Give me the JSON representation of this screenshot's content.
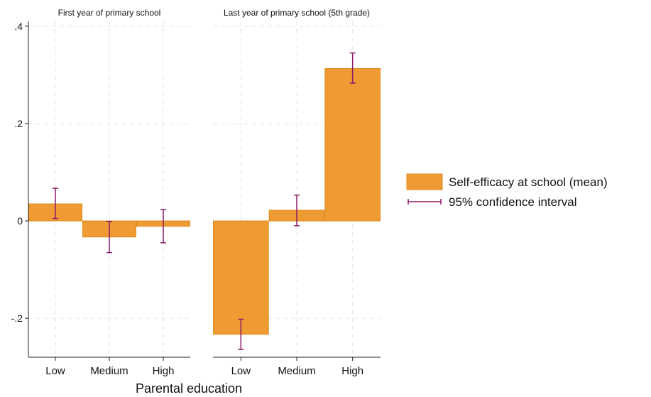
{
  "chart_data": {
    "type": "bar",
    "xlabel": "Parental education",
    "ylabel": "",
    "ylim": [
      -0.28,
      0.41
    ],
    "yticks": [
      {
        "value": 0.4,
        "label": ".4"
      },
      {
        "value": 0.2,
        "label": ".2"
      },
      {
        "value": 0,
        "label": "0"
      },
      {
        "value": -0.2,
        "label": "-.2"
      }
    ],
    "grid": true,
    "legend_position": "right",
    "legend": [
      {
        "label": "Self-efficacy at school (mean)",
        "kind": "bar"
      },
      {
        "label": "95% confidence interval",
        "kind": "errorbar"
      }
    ],
    "colors": {
      "bar": "#ee9b33",
      "bar_edge": "#e08a1e",
      "ci": "#8b1a6b",
      "grid": "#e6e6e6",
      "axis": "#222222"
    },
    "panels": [
      {
        "title": "First year of primary school",
        "categories": [
          "Low",
          "Medium",
          "High"
        ],
        "values": [
          0.035,
          -0.033,
          -0.011
        ],
        "ci_low": [
          0.005,
          -0.065,
          -0.045
        ],
        "ci_high": [
          0.067,
          -0.001,
          0.023
        ]
      },
      {
        "title": "Last year of primary school (5th grade)",
        "categories": [
          "Low",
          "Medium",
          "High"
        ],
        "values": [
          -0.233,
          0.022,
          0.313
        ],
        "ci_low": [
          -0.264,
          -0.01,
          0.283
        ],
        "ci_high": [
          -0.202,
          0.053,
          0.345
        ]
      }
    ]
  }
}
